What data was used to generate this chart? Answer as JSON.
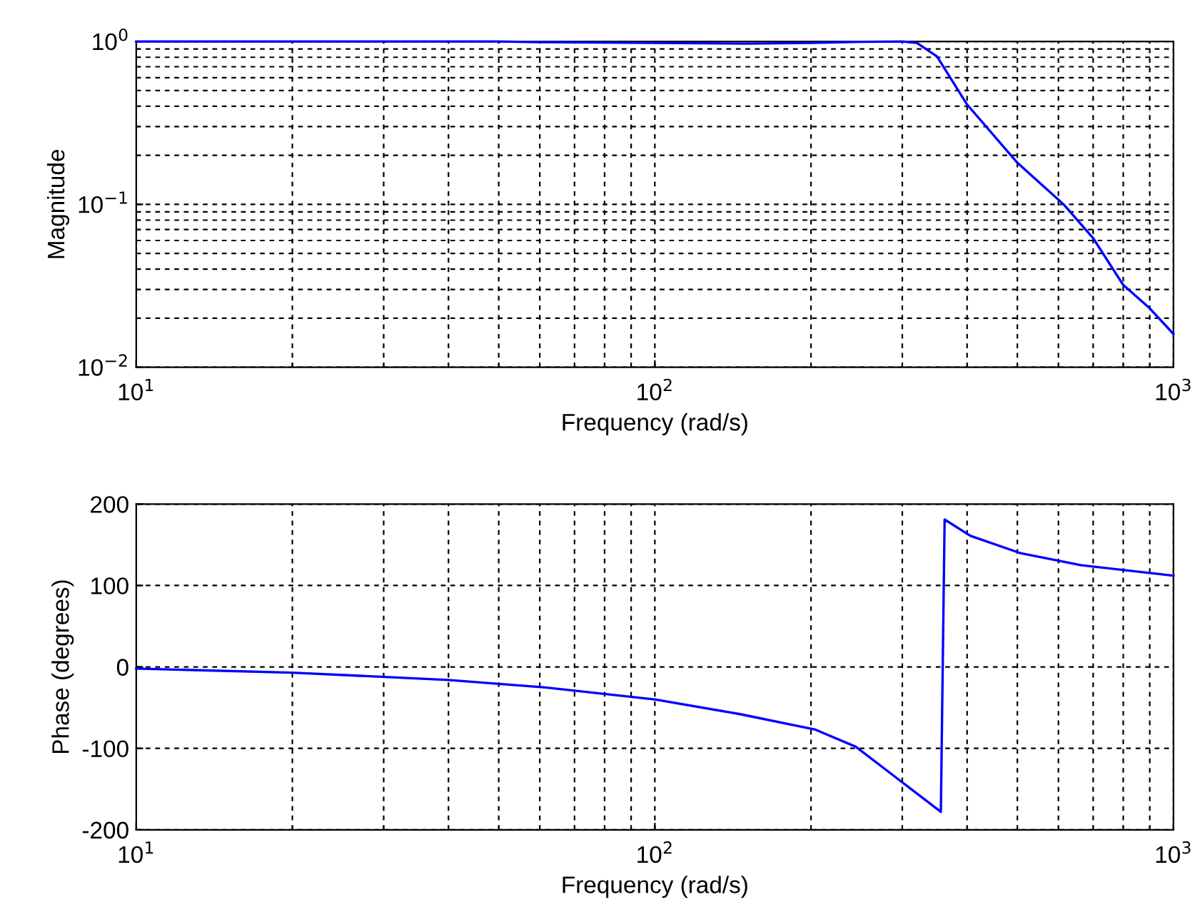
{
  "chart_data": [
    {
      "type": "line",
      "xlabel": "Frequency (rad/s)",
      "ylabel": "Magnitude",
      "log": "xy",
      "grid": true,
      "legend": false,
      "marker": "none",
      "line_style": "solid",
      "x": [
        10,
        50,
        60,
        100,
        150,
        200,
        250,
        300,
        320,
        350,
        400,
        500,
        614,
        700,
        800,
        900,
        1000
      ],
      "series": [
        {
          "color": "#0000ff",
          "values": [
            1,
            1,
            0.99,
            0.98,
            0.97,
            0.98,
            0.995,
            1,
            0.98,
            0.81,
            0.41,
            0.18,
            0.1,
            0.062,
            0.032,
            0.023,
            0.016
          ]
        }
      ],
      "xlim": [
        10,
        1000
      ],
      "xticks": [
        {
          "value": 10,
          "label": "10$^{1}$"
        },
        {
          "value": 100,
          "label": "10$^{2}$"
        },
        {
          "value": 1000,
          "label": "10$^{3}$"
        }
      ],
      "ylim": [
        0.01,
        1
      ],
      "yticks": [
        {
          "value": 0.01,
          "label": "10$^{−2}$"
        },
        {
          "value": 0.1,
          "label": "10$^{−1}$"
        },
        {
          "value": 1,
          "label": "10$^{0}$"
        }
      ]
    },
    {
      "type": "line",
      "xlabel": "Frequency (rad/s)",
      "ylabel": "Phase (degrees)",
      "log": "x",
      "grid": true,
      "legend": false,
      "marker": "none",
      "line_style": "solid",
      "x": [
        10,
        20,
        40,
        61,
        100,
        146,
        204,
        244,
        292,
        356,
        362,
        406,
        505,
        662,
        1000
      ],
      "series": [
        {
          "color": "#0000ff",
          "values": [
            -2,
            -7,
            -16,
            -25,
            -40,
            -58,
            -77,
            -98,
            -136,
            -178,
            181,
            161,
            140,
            125,
            112
          ]
        }
      ],
      "xlim": [
        10,
        1000
      ],
      "xticks": [
        {
          "value": 10,
          "label": "10$^{1}$"
        },
        {
          "value": 100,
          "label": "10$^{2}$"
        },
        {
          "value": 1000,
          "label": "10$^{3}$"
        }
      ],
      "ylim": [
        -200,
        200
      ],
      "yticks": [
        -200,
        -100,
        0,
        100,
        200
      ]
    }
  ]
}
